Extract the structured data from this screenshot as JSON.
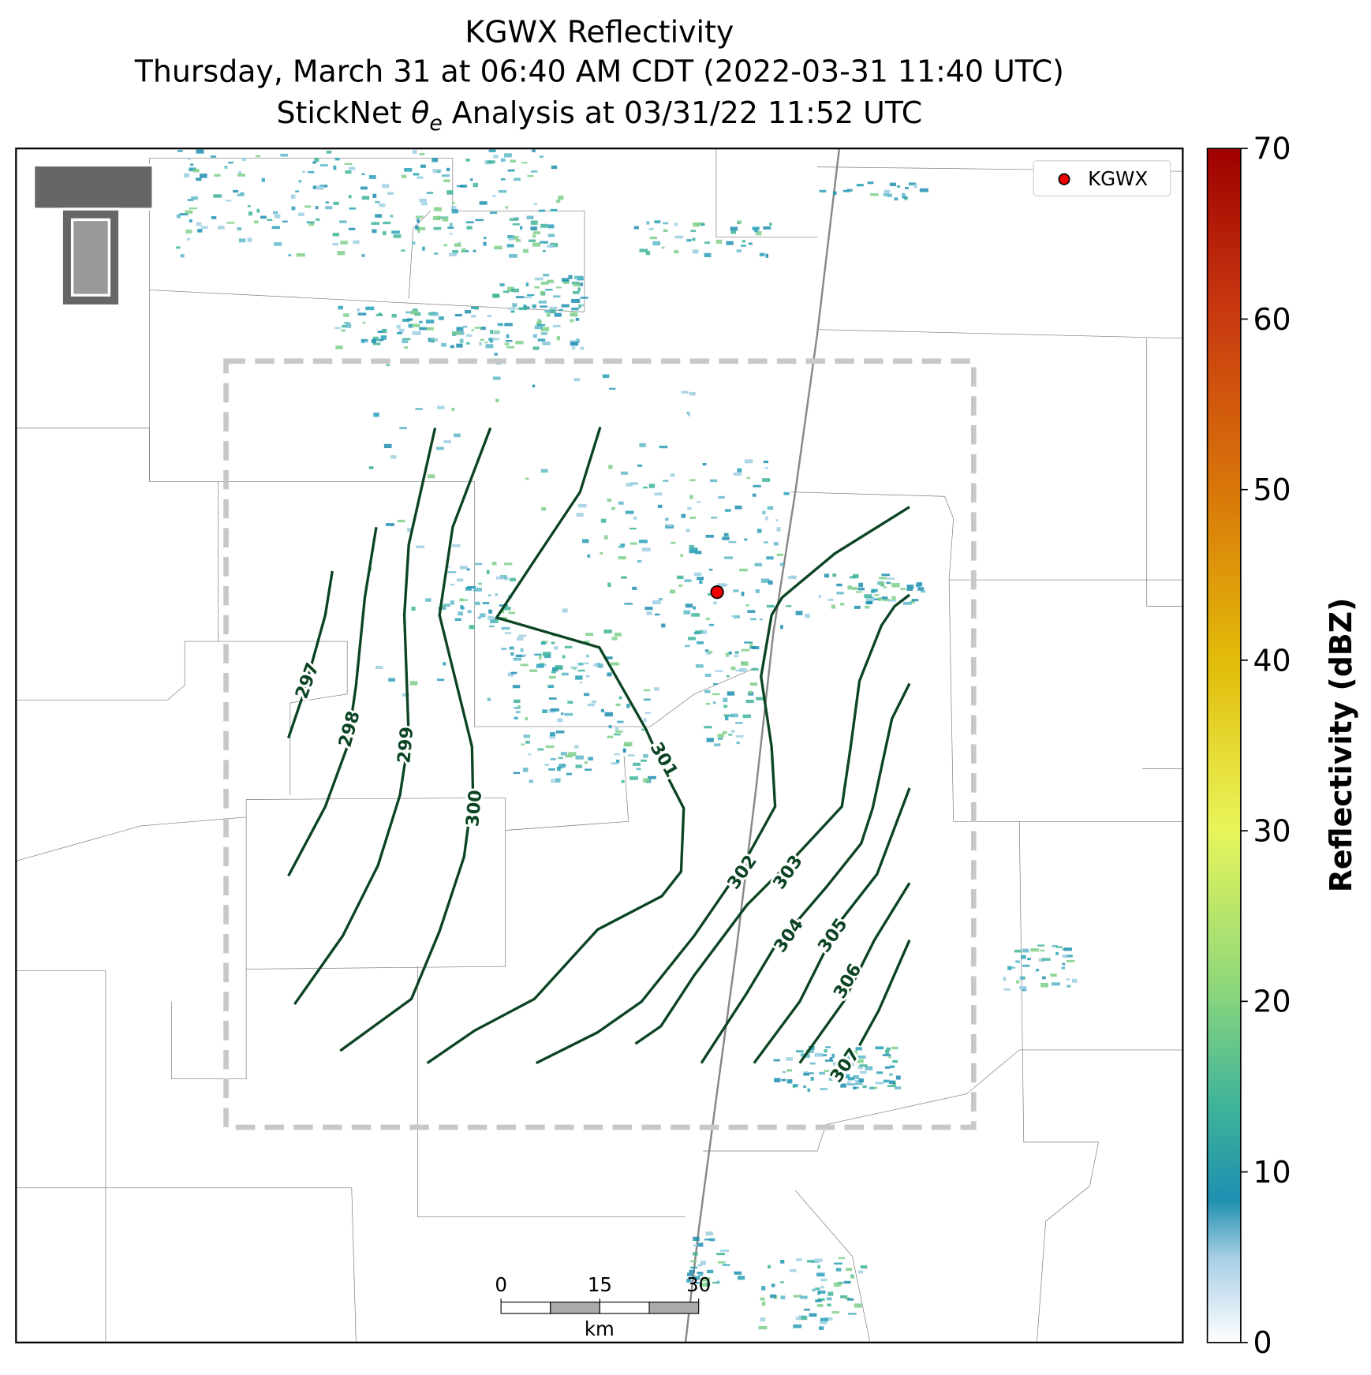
{
  "title": {
    "line1": "KGWX Reflectivity",
    "line2": "Thursday, March 31 at 06:40 AM CDT (2022-03-31 11:40 UTC)",
    "line3": {
      "prefix": "StickNet ",
      "symbol": "θ",
      "subscript": "e",
      "suffix": " Analysis at 03/31/22 11:52 UTC"
    }
  },
  "legend": {
    "label": "KGWX"
  },
  "contours": {
    "levels": [
      297,
      298,
      299,
      300,
      301,
      302,
      303,
      304,
      305,
      306,
      307
    ]
  },
  "scale_bar": {
    "ticks": [
      0,
      15,
      30
    ],
    "unit": "km"
  },
  "colorbar": {
    "label": "Reflectivity (dBZ)",
    "lim": [
      0,
      70
    ],
    "ticks": [
      0,
      10,
      20,
      30,
      40,
      50,
      60,
      70
    ]
  }
}
